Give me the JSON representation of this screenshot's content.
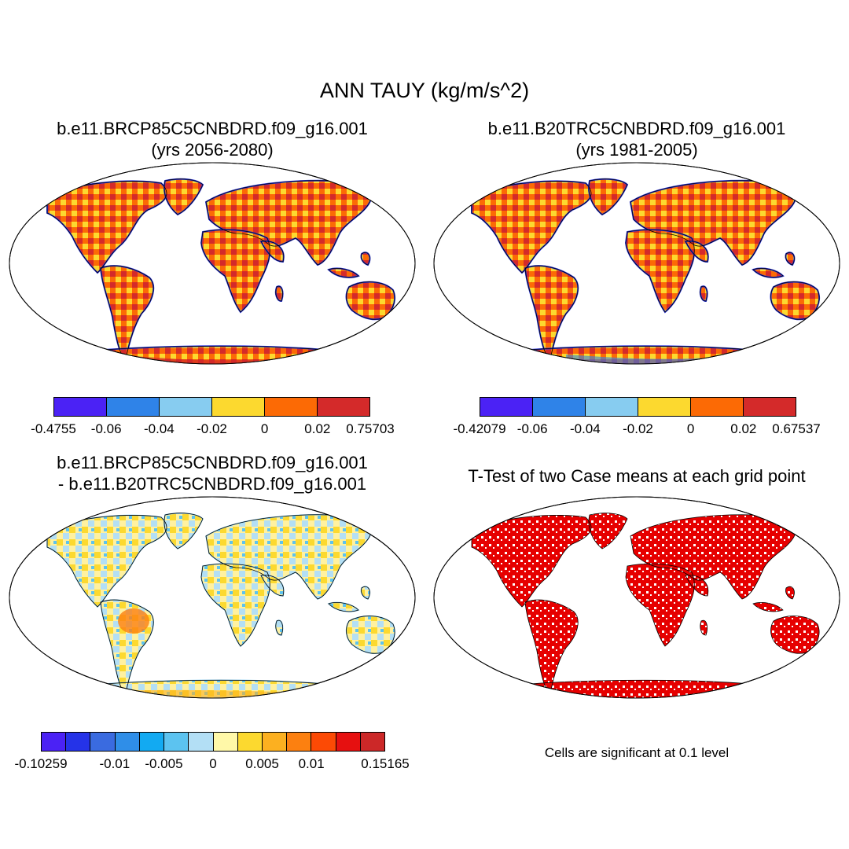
{
  "title": "ANN TAUY (kg/m/s^2)",
  "panels": {
    "top_left": {
      "title_line1": "b.e11.BRCP85C5CNBDRD.f09_g16.001",
      "title_line2": "(yrs 2056-2080)",
      "colorbar": {
        "colors": [
          "#4b22f5",
          "#2f83e8",
          "#87ccf0",
          "#fcd92f",
          "#fc6a05",
          "#d42a2a"
        ],
        "ticks": [
          "-0.4755",
          "-0.06",
          "-0.04",
          "-0.02",
          "0",
          "0.02",
          "0.75703"
        ]
      }
    },
    "top_right": {
      "title_line1": "b.e11.B20TRC5CNBDRD.f09_g16.001",
      "title_line2": "(yrs 1981-2005)",
      "colorbar": {
        "colors": [
          "#4b22f5",
          "#2f83e8",
          "#87ccf0",
          "#fcd92f",
          "#fc6a05",
          "#d42a2a"
        ],
        "ticks": [
          "-0.42079",
          "-0.06",
          "-0.04",
          "-0.02",
          "0",
          "0.02",
          "0.67537"
        ]
      }
    },
    "bottom_left": {
      "title_line1": "b.e11.BRCP85C5CNBDRD.f09_g16.001",
      "title_line2": "- b.e11.B20TRC5CNBDRD.f09_g16.001",
      "colorbar": {
        "colors": [
          "#4b22f5",
          "#2533e8",
          "#3a6be0",
          "#2f8ee8",
          "#12aaf2",
          "#5cc3f0",
          "#b3dff5",
          "#fff8a8",
          "#fcd92f",
          "#fcb020",
          "#fc8010",
          "#fc4a05",
          "#e61010",
          "#cc2828"
        ],
        "ticks": [
          {
            "label": "-0.10259",
            "pos": 0
          },
          {
            "label": "-0.01",
            "pos": 3
          },
          {
            "label": "-0.005",
            "pos": 5
          },
          {
            "label": "0",
            "pos": 7
          },
          {
            "label": "0.005",
            "pos": 9
          },
          {
            "label": "0.01",
            "pos": 11
          },
          {
            "label": "0.15165",
            "pos": 14
          }
        ]
      }
    },
    "bottom_right": {
      "title": "T-Test of two Case means at each grid point",
      "note": "Cells are significant at 0.1 level",
      "color": "#e60000"
    }
  }
}
